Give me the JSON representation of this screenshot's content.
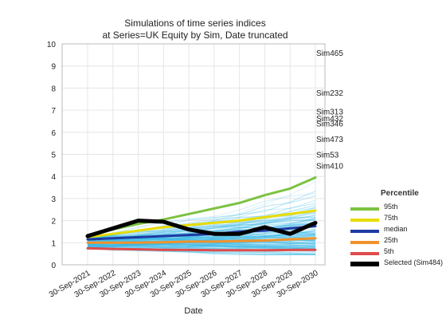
{
  "chart_data": {
    "type": "line",
    "title": "Simulations of time series indices",
    "subtitle": "at Series=UK Equity by Sim, Date truncated",
    "xlabel": "Date",
    "ylabel": "",
    "ylim": [
      0,
      10
    ],
    "yticks": [
      0,
      1,
      2,
      3,
      4,
      5,
      6,
      7,
      8,
      9,
      10
    ],
    "categories": [
      "30-Sep-2021",
      "30-Sep-2022",
      "30-Sep-2023",
      "30-Sep-2024",
      "30-Sep-2025",
      "30-Sep-2026",
      "30-Sep-2027",
      "30-Sep-2028",
      "30-Sep-2029",
      "30-Sep-2030"
    ],
    "grid": true,
    "legend_title": "Percentile",
    "legend_position": "right",
    "series": [
      {
        "name": "95th",
        "color": "#7cc242",
        "values": [
          1.35,
          1.6,
          1.85,
          2.05,
          2.3,
          2.55,
          2.8,
          3.15,
          3.45,
          3.95
        ]
      },
      {
        "name": "75th",
        "color": "#e8dc00",
        "values": [
          1.25,
          1.4,
          1.55,
          1.7,
          1.8,
          1.9,
          2.0,
          2.15,
          2.3,
          2.45
        ]
      },
      {
        "name": "median",
        "color": "#1f3aa3",
        "values": [
          1.15,
          1.2,
          1.25,
          1.3,
          1.35,
          1.4,
          1.5,
          1.55,
          1.65,
          1.75
        ]
      },
      {
        "name": "25th",
        "color": "#f0922b",
        "values": [
          1.0,
          1.0,
          1.0,
          1.02,
          1.05,
          1.05,
          1.08,
          1.1,
          1.15,
          1.2
        ]
      },
      {
        "name": "5th",
        "color": "#e04b4b",
        "values": [
          0.75,
          0.72,
          0.7,
          0.68,
          0.67,
          0.66,
          0.66,
          0.66,
          0.67,
          0.68
        ]
      },
      {
        "name": "Selected (Sim484)",
        "color": "#000000",
        "values": [
          1.3,
          1.65,
          2.0,
          1.95,
          1.6,
          1.4,
          1.4,
          1.7,
          1.4,
          1.9
        ]
      }
    ],
    "annotations": [
      {
        "label": "Sim465",
        "y": 9.6
      },
      {
        "label": "Sim232",
        "y": 7.8
      },
      {
        "label": "Sim313",
        "y": 6.95
      },
      {
        "label": "Sim432",
        "y": 6.65
      },
      {
        "label": "Sim346",
        "y": 6.4
      },
      {
        "label": "Sim473",
        "y": 5.7
      },
      {
        "label": "Sim53",
        "y": 5.0
      },
      {
        "label": "Sim410",
        "y": 4.5
      }
    ],
    "background_sims_color": "#39b8e6"
  }
}
